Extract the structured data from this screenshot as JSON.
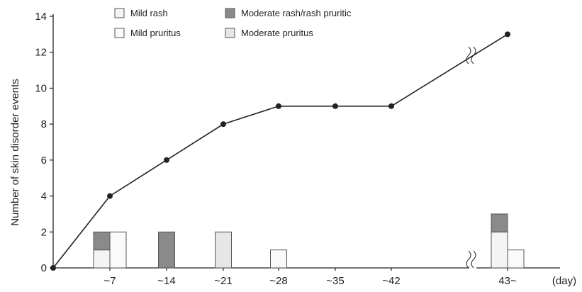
{
  "chart_data": {
    "type": "bar",
    "ylabel": "Number of skin disorder events",
    "x_unit": "(day)",
    "ylim": [
      0,
      14
    ],
    "yticks": [
      0,
      2,
      4,
      6,
      8,
      10,
      12,
      14
    ],
    "categories": [
      "~7",
      "~14",
      "~21",
      "~28",
      "~35",
      "~42",
      "43~"
    ],
    "legend": [
      {
        "label": "Mild rash",
        "color": "#f4f4f4"
      },
      {
        "label": "Moderate rash/rash pruritic",
        "color": "#8a8a8a"
      },
      {
        "label": "Mild pruritus",
        "color": "#fafafa"
      },
      {
        "label": "Moderate pruritus",
        "color": "#e6e6e6"
      }
    ],
    "bars": [
      {
        "category": "~7",
        "stacks": [
          {
            "series": "Mild rash",
            "value": 1
          },
          {
            "series": "Moderate rash/rash pruritic",
            "value": 1
          }
        ]
      },
      {
        "category": "~7",
        "stacks": [
          {
            "series": "Mild pruritus",
            "value": 2
          }
        ]
      },
      {
        "category": "~14",
        "stacks": [
          {
            "series": "Moderate rash/rash pruritic",
            "value": 2
          }
        ]
      },
      {
        "category": "~21",
        "stacks": [
          {
            "series": "Moderate pruritus",
            "value": 2
          }
        ]
      },
      {
        "category": "~28",
        "stacks": [
          {
            "series": "Mild pruritus",
            "value": 1
          }
        ]
      },
      {
        "category": "43~",
        "stacks": [
          {
            "series": "Mild rash",
            "value": 2
          },
          {
            "series": "Moderate rash/rash pruritic",
            "value": 1
          }
        ]
      },
      {
        "category": "43~",
        "stacks": [
          {
            "series": "Mild pruritus",
            "value": 1
          }
        ]
      }
    ],
    "cumulative_line": {
      "points": [
        {
          "x": "0",
          "y": 0
        },
        {
          "x": "~7",
          "y": 4
        },
        {
          "x": "~14",
          "y": 6
        },
        {
          "x": "~21",
          "y": 8
        },
        {
          "x": "~28",
          "y": 9
        },
        {
          "x": "~35",
          "y": 9
        },
        {
          "x": "~42",
          "y": 9
        },
        {
          "x": "43~",
          "y": 13
        }
      ]
    },
    "axis_break": true,
    "grid": false
  }
}
